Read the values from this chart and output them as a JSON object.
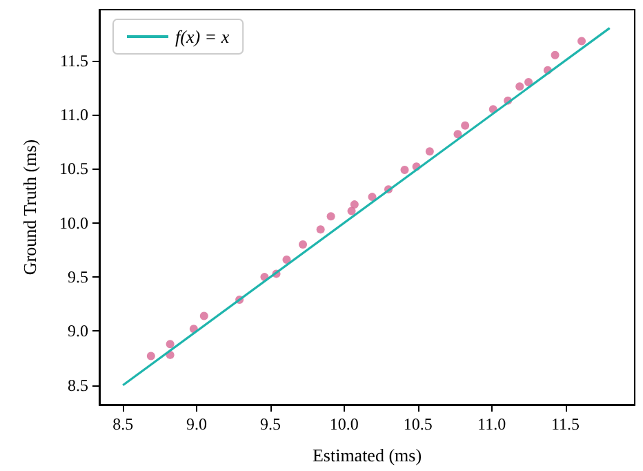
{
  "chart_data": {
    "type": "scatter",
    "xlabel": "Estimated (ms)",
    "ylabel": "Ground Truth (ms)",
    "xlim": [
      8.34,
      11.97
    ],
    "ylim": [
      8.32,
      11.97
    ],
    "xticks": [
      8.5,
      {
        "value": 9,
        "label": "9.0"
      },
      9.5,
      {
        "value": 10,
        "label": "10.0"
      },
      10.5,
      {
        "value": 11,
        "label": "11.0"
      },
      11.5
    ],
    "yticks": [
      8.5,
      {
        "value": 9,
        "label": "9.0"
      },
      9.5,
      {
        "value": 10,
        "label": "10.0"
      },
      10.5,
      {
        "value": 11,
        "label": "11.0"
      },
      11.5
    ],
    "grid": false,
    "legend": "top left",
    "series": [
      {
        "type": "line",
        "name": "f(x) = x",
        "color": "#1fb5ad",
        "line_style": "solid",
        "x": [
          8.5,
          11.8
        ],
        "values": [
          8.5,
          11.8
        ]
      },
      {
        "marker": "circle",
        "color": "#d9709a",
        "x": [
          8.69,
          8.82,
          8.82,
          8.98,
          9.05,
          9.29,
          9.46,
          9.54,
          9.61,
          9.72,
          9.84,
          9.91,
          10.05,
          10.07,
          10.19,
          10.3,
          10.41,
          10.49,
          10.58,
          10.77,
          10.82,
          11.01,
          11.11,
          11.19,
          11.25,
          11.38,
          11.43,
          11.61
        ],
        "values": [
          8.77,
          8.88,
          8.78,
          9.02,
          9.14,
          9.29,
          9.5,
          9.53,
          9.66,
          9.8,
          9.94,
          10.06,
          10.11,
          10.17,
          10.24,
          10.31,
          10.49,
          10.52,
          10.66,
          10.82,
          10.9,
          11.05,
          11.13,
          11.26,
          11.3,
          11.41,
          11.55,
          11.68
        ]
      }
    ]
  }
}
